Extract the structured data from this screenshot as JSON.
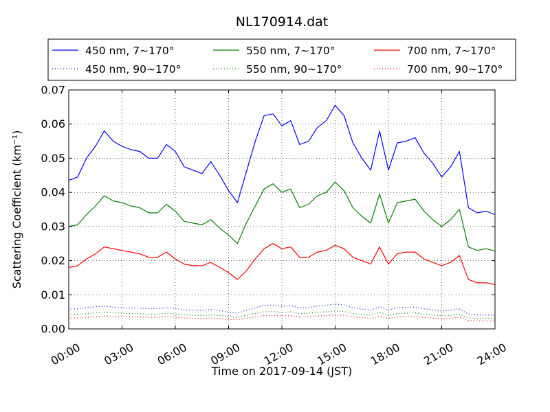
{
  "chart_data": {
    "type": "line",
    "title": "NL170914.dat",
    "xlabel": "Time on 2017-09-14 (JST)",
    "ylabel": "Scattering Coefficient (km⁻¹)",
    "xlim": [
      "00:00",
      "24:00"
    ],
    "ylim": [
      0,
      0.07
    ],
    "grid": true,
    "legend_position": "top",
    "x_ticks": [
      "00:00",
      "03:00",
      "06:00",
      "09:00",
      "12:00",
      "15:00",
      "18:00",
      "21:00",
      "24:00"
    ],
    "y_ticks": [
      "0.00",
      "0.01",
      "0.02",
      "0.03",
      "0.04",
      "0.05",
      "0.06",
      "0.07"
    ],
    "x": [
      "00:00",
      "00:30",
      "01:00",
      "01:30",
      "02:00",
      "02:30",
      "03:00",
      "03:30",
      "04:00",
      "04:30",
      "05:00",
      "05:30",
      "06:00",
      "06:30",
      "07:00",
      "07:30",
      "08:00",
      "08:30",
      "09:00",
      "09:30",
      "10:00",
      "10:30",
      "11:00",
      "11:30",
      "12:00",
      "12:30",
      "13:00",
      "13:30",
      "14:00",
      "14:30",
      "15:00",
      "15:30",
      "16:00",
      "16:30",
      "17:00",
      "17:30",
      "18:00",
      "18:30",
      "19:00",
      "19:30",
      "20:00",
      "20:30",
      "21:00",
      "21:30",
      "22:00",
      "22:30",
      "23:00",
      "23:30",
      "24:00"
    ],
    "series": [
      {
        "name": "450 nm, 7∼170°",
        "color": "#0000ff",
        "style": "solid",
        "values": [
          0.0435,
          0.0445,
          0.05,
          0.0535,
          0.058,
          0.055,
          0.0535,
          0.0525,
          0.052,
          0.05,
          0.05,
          0.054,
          0.052,
          0.0475,
          0.0465,
          0.0455,
          0.049,
          0.045,
          0.0405,
          0.037,
          0.046,
          0.055,
          0.0625,
          0.063,
          0.0595,
          0.061,
          0.054,
          0.055,
          0.059,
          0.061,
          0.0655,
          0.0625,
          0.0545,
          0.05,
          0.0465,
          0.058,
          0.0465,
          0.0545,
          0.055,
          0.056,
          0.0515,
          0.0485,
          0.0445,
          0.0475,
          0.052,
          0.0355,
          0.034,
          0.0345,
          0.0335
        ]
      },
      {
        "name": "450 nm, 90∼170°",
        "color": "#0000ff",
        "style": "dotted",
        "values": [
          0.0058,
          0.0059,
          0.0063,
          0.0065,
          0.0067,
          0.0064,
          0.0062,
          0.0061,
          0.0061,
          0.0059,
          0.0059,
          0.0062,
          0.006,
          0.0056,
          0.0055,
          0.0054,
          0.0057,
          0.0054,
          0.0049,
          0.0046,
          0.0055,
          0.0062,
          0.0069,
          0.007,
          0.0066,
          0.0068,
          0.0062,
          0.0063,
          0.0067,
          0.0069,
          0.0073,
          0.007,
          0.0062,
          0.0058,
          0.0055,
          0.0065,
          0.0055,
          0.0062,
          0.0063,
          0.0064,
          0.0059,
          0.0056,
          0.0052,
          0.0055,
          0.0059,
          0.0043,
          0.0041,
          0.0041,
          0.004
        ]
      },
      {
        "name": "550 nm, 7∼170°",
        "color": "#008000",
        "style": "solid",
        "values": [
          0.03,
          0.0305,
          0.0335,
          0.036,
          0.039,
          0.0375,
          0.037,
          0.036,
          0.0355,
          0.034,
          0.034,
          0.0365,
          0.0345,
          0.0315,
          0.031,
          0.0305,
          0.032,
          0.0295,
          0.0275,
          0.025,
          0.031,
          0.036,
          0.041,
          0.0425,
          0.04,
          0.041,
          0.0355,
          0.0365,
          0.039,
          0.04,
          0.043,
          0.0405,
          0.0355,
          0.033,
          0.031,
          0.0395,
          0.031,
          0.037,
          0.0375,
          0.038,
          0.0345,
          0.032,
          0.03,
          0.032,
          0.035,
          0.024,
          0.023,
          0.0235,
          0.0228
        ]
      },
      {
        "name": "550 nm, 90∼170°",
        "color": "#008000",
        "style": "dotted",
        "values": [
          0.0042,
          0.0042,
          0.0045,
          0.0047,
          0.0049,
          0.0047,
          0.0046,
          0.0045,
          0.0045,
          0.0043,
          0.0043,
          0.0046,
          0.0044,
          0.0041,
          0.004,
          0.0039,
          0.0041,
          0.0039,
          0.0036,
          0.0034,
          0.004,
          0.0045,
          0.005,
          0.0051,
          0.0048,
          0.005,
          0.0045,
          0.0046,
          0.0049,
          0.005,
          0.0053,
          0.0051,
          0.0045,
          0.0042,
          0.004,
          0.0048,
          0.004,
          0.0045,
          0.0046,
          0.0047,
          0.0043,
          0.0041,
          0.0038,
          0.004,
          0.0043,
          0.0032,
          0.0031,
          0.0031,
          0.003
        ]
      },
      {
        "name": "700 nm, 7∼170°",
        "color": "#ff0000",
        "style": "solid",
        "values": [
          0.018,
          0.0185,
          0.0205,
          0.022,
          0.024,
          0.0235,
          0.023,
          0.0225,
          0.022,
          0.021,
          0.021,
          0.0225,
          0.0205,
          0.019,
          0.0185,
          0.0185,
          0.0195,
          0.018,
          0.0165,
          0.0145,
          0.017,
          0.0205,
          0.0235,
          0.025,
          0.0235,
          0.024,
          0.021,
          0.021,
          0.0225,
          0.023,
          0.0245,
          0.0235,
          0.021,
          0.02,
          0.019,
          0.024,
          0.019,
          0.022,
          0.0225,
          0.0225,
          0.0205,
          0.0195,
          0.0185,
          0.0195,
          0.0215,
          0.0145,
          0.0135,
          0.0135,
          0.013
        ]
      },
      {
        "name": "700 nm, 90∼170°",
        "color": "#ff0000",
        "style": "dotted",
        "values": [
          0.0032,
          0.0032,
          0.0034,
          0.0036,
          0.0038,
          0.0037,
          0.0036,
          0.0035,
          0.0035,
          0.0034,
          0.0034,
          0.0036,
          0.0034,
          0.0032,
          0.0031,
          0.0031,
          0.0032,
          0.003,
          0.0028,
          0.0027,
          0.0031,
          0.0035,
          0.0039,
          0.004,
          0.0038,
          0.0039,
          0.0035,
          0.0036,
          0.0038,
          0.0039,
          0.0041,
          0.004,
          0.0035,
          0.0033,
          0.0031,
          0.0037,
          0.0031,
          0.0035,
          0.0036,
          0.0036,
          0.0033,
          0.0032,
          0.003,
          0.0031,
          0.0034,
          0.0025,
          0.0024,
          0.0024,
          0.0023
        ]
      }
    ]
  }
}
